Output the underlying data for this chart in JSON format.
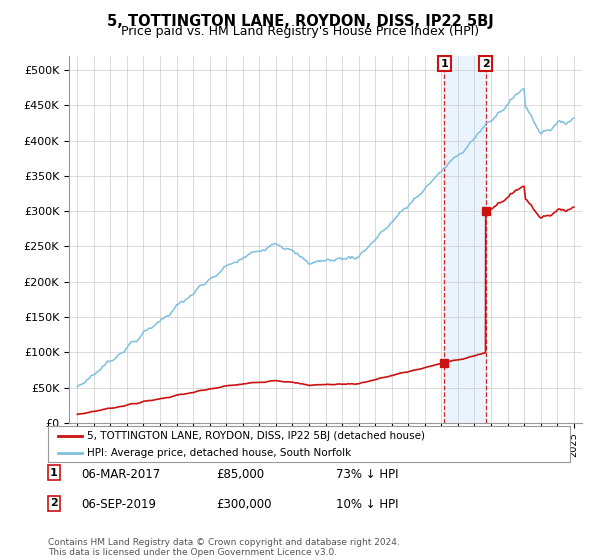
{
  "title": "5, TOTTINGTON LANE, ROYDON, DISS, IP22 5BJ",
  "subtitle": "Price paid vs. HM Land Registry's House Price Index (HPI)",
  "legend_line1": "5, TOTTINGTON LANE, ROYDON, DISS, IP22 5BJ (detached house)",
  "legend_line2": "HPI: Average price, detached house, South Norfolk",
  "annotation1_label": "1",
  "annotation1_date": "06-MAR-2017",
  "annotation1_price": "£85,000",
  "annotation1_pct": "73% ↓ HPI",
  "annotation2_label": "2",
  "annotation2_date": "06-SEP-2019",
  "annotation2_price": "£300,000",
  "annotation2_pct": "10% ↓ HPI",
  "footnote": "Contains HM Land Registry data © Crown copyright and database right 2024.\nThis data is licensed under the Open Government Licence v3.0.",
  "hpi_color": "#7fbfdf",
  "price_color": "#cc1111",
  "highlight_color": "#ddeeff",
  "ylim": [
    0,
    520000
  ],
  "yticks": [
    0,
    50000,
    100000,
    150000,
    200000,
    250000,
    300000,
    350000,
    400000,
    450000,
    500000
  ],
  "ytick_labels": [
    "£0",
    "£50K",
    "£100K",
    "£150K",
    "£200K",
    "£250K",
    "£300K",
    "£350K",
    "£400K",
    "£450K",
    "£500K"
  ],
  "sale1_year": 2017.18,
  "sale1_price": 85000,
  "sale2_year": 2019.68,
  "sale2_price": 300000,
  "highlight_start": 2017.18,
  "highlight_end": 2019.68,
  "xmin": 1995,
  "xmax": 2025
}
